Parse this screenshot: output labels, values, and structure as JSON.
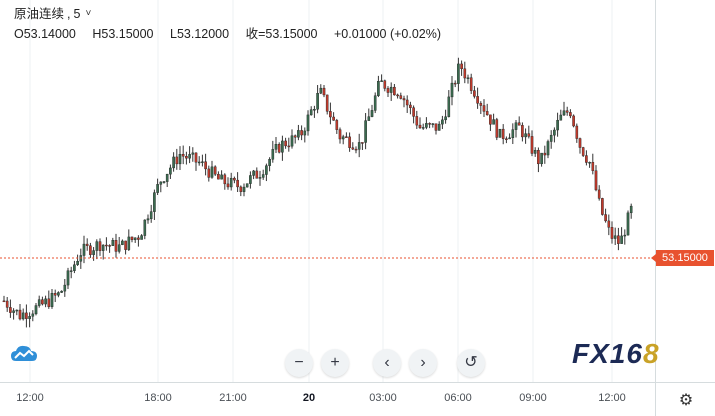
{
  "symbol": {
    "name": "原油连续",
    "interval": "5"
  },
  "ohlc": {
    "open": "O53.14000",
    "high": "H53.15000",
    "low": "L53.12000",
    "close": "收=53.15000",
    "change": "+0.01000 (+0.02%)"
  },
  "current_price": "53.15000",
  "time_axis": [
    {
      "label": "12:00",
      "bold": false
    },
    {
      "label": "18:00",
      "bold": false
    },
    {
      "label": "21:00",
      "bold": false
    },
    {
      "label": "20",
      "bold": true
    },
    {
      "label": "03:00",
      "bold": false
    },
    {
      "label": "06:00",
      "bold": false
    },
    {
      "label": "09:00",
      "bold": false
    },
    {
      "label": "12:00",
      "bold": false
    }
  ],
  "toolbar": {
    "zoom_out": "−",
    "zoom_in": "+",
    "scroll_left": "‹",
    "scroll_right": "›",
    "reset": "↺"
  },
  "brand": {
    "prefix": "FX16",
    "suffix": "8"
  },
  "icons": {
    "settings": "gear-icon",
    "logo": "cloud-chart-icon"
  },
  "colors": {
    "up": "#3a6b4f",
    "down": "#c0392b",
    "price_line": "#e8522f",
    "grid": "#eef1f3"
  },
  "chart_data": {
    "type": "candlestick",
    "price_path": [
      [
        0,
        52.6
      ],
      [
        20,
        52.5
      ],
      [
        40,
        52.55
      ],
      [
        60,
        52.62
      ],
      [
        80,
        52.85
      ],
      [
        100,
        52.9
      ],
      [
        120,
        52.88
      ],
      [
        140,
        52.95
      ],
      [
        160,
        53.25
      ],
      [
        180,
        53.4
      ],
      [
        200,
        53.35
      ],
      [
        220,
        53.25
      ],
      [
        240,
        53.22
      ],
      [
        260,
        53.3
      ],
      [
        280,
        53.45
      ],
      [
        300,
        53.5
      ],
      [
        320,
        53.75
      ],
      [
        340,
        53.5
      ],
      [
        360,
        53.45
      ],
      [
        380,
        53.8
      ],
      [
        400,
        53.75
      ],
      [
        420,
        53.55
      ],
      [
        440,
        53.55
      ],
      [
        460,
        53.9
      ],
      [
        480,
        53.7
      ],
      [
        500,
        53.5
      ],
      [
        520,
        53.55
      ],
      [
        540,
        53.35
      ],
      [
        560,
        53.6
      ],
      [
        570,
        53.65
      ],
      [
        580,
        53.45
      ],
      [
        590,
        53.35
      ],
      [
        600,
        53.1
      ],
      [
        610,
        52.95
      ],
      [
        620,
        52.9
      ],
      [
        635,
        53.15
      ]
    ],
    "pixel_scale_note": ""
  }
}
